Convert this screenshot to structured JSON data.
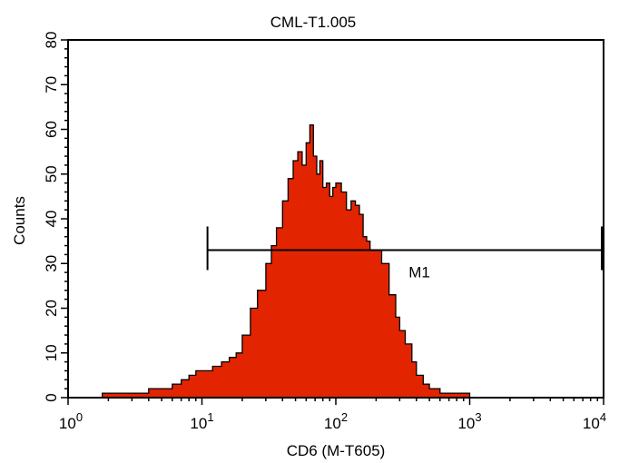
{
  "chart_data": {
    "type": "histogram",
    "title": "CML-T1.005",
    "xlabel": "CD6 (M-T605)",
    "ylabel": "Counts",
    "x_scale": "log",
    "xlim": [
      1,
      10000
    ],
    "ylim": [
      0,
      80
    ],
    "x_ticks": [
      {
        "base": "10",
        "exp": "0"
      },
      {
        "base": "10",
        "exp": "1"
      },
      {
        "base": "10",
        "exp": "2"
      },
      {
        "base": "10",
        "exp": "3"
      },
      {
        "base": "10",
        "exp": "4"
      }
    ],
    "y_ticks": [
      "0",
      "10",
      "20",
      "30",
      "40",
      "50",
      "60",
      "70",
      "80"
    ],
    "fill_color": "#e32400",
    "outline_color": "#000000",
    "histogram": {
      "x": [
        1.2,
        1.5,
        1.8,
        2.2,
        2.7,
        3.3,
        4.0,
        5.0,
        6.0,
        7.0,
        8.0,
        9.0,
        10,
        12,
        14,
        16,
        18,
        20,
        23,
        26,
        30,
        33,
        36,
        40,
        44,
        48,
        52,
        56,
        60,
        64,
        68,
        72,
        76,
        80,
        85,
        90,
        95,
        100,
        110,
        120,
        130,
        140,
        150,
        160,
        170,
        180,
        200,
        220,
        250,
        280,
        300,
        330,
        370,
        400,
        450,
        500,
        600,
        700,
        800,
        1000,
        1200,
        1500
      ],
      "counts": [
        0,
        0,
        1,
        1,
        1,
        1,
        2,
        2,
        3,
        4,
        5,
        6,
        6,
        7,
        8,
        9,
        10,
        14,
        20,
        24,
        30,
        34,
        38,
        44,
        49,
        53,
        55,
        52,
        57,
        61,
        54,
        50,
        53,
        47,
        48,
        45,
        47,
        48,
        46,
        42,
        44,
        43,
        41,
        36,
        35,
        33,
        33,
        30,
        23,
        18,
        15,
        12,
        8,
        5,
        3,
        2,
        1,
        1,
        1,
        0,
        0,
        0
      ]
    },
    "marker": {
      "label": "M1",
      "x_range": [
        11,
        10000
      ],
      "y": 33
    }
  }
}
